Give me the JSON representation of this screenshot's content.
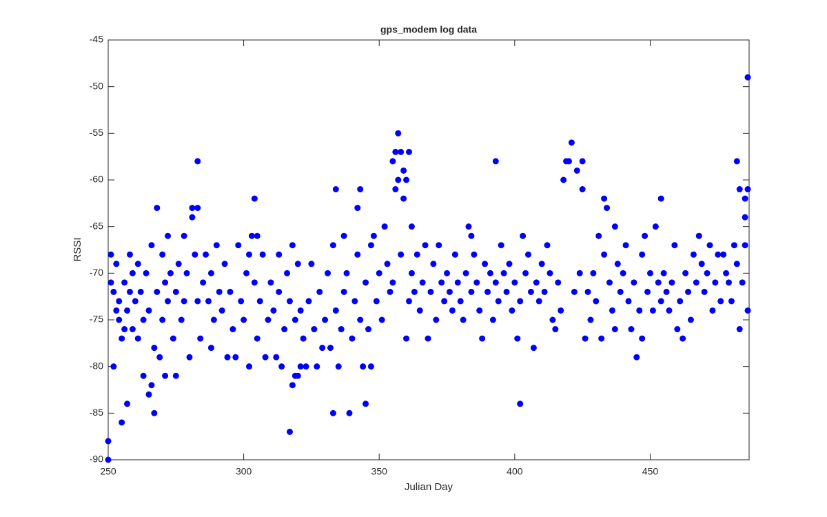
{
  "chart_data": {
    "type": "scatter",
    "title": "gps_modem log data",
    "x_label": "Julian Day",
    "y_label": "RSSI",
    "color": "#0000ff",
    "x": [
      250,
      250,
      251,
      251,
      252,
      252,
      253,
      253,
      254,
      254,
      255,
      255,
      256,
      256,
      257,
      257,
      258,
      258,
      259,
      259,
      260,
      261,
      261,
      262,
      263,
      263,
      264,
      265,
      265,
      266,
      266,
      267,
      267,
      268,
      268,
      269,
      270,
      270,
      271,
      271,
      272,
      272,
      273,
      274,
      275,
      275,
      276,
      277,
      278,
      278,
      279,
      280,
      281,
      281,
      282,
      283,
      283,
      283,
      284,
      285,
      286,
      287,
      288,
      288,
      289,
      290,
      291,
      292,
      293,
      294,
      295,
      296,
      297,
      298,
      299,
      300,
      301,
      302,
      302,
      303,
      304,
      304,
      305,
      305,
      306,
      307,
      308,
      309,
      310,
      311,
      312,
      313,
      313,
      314,
      315,
      316,
      317,
      317,
      318,
      318,
      319,
      319,
      320,
      320,
      321,
      321,
      322,
      323,
      324,
      325,
      326,
      327,
      328,
      329,
      330,
      331,
      332,
      333,
      333,
      334,
      334,
      335,
      336,
      337,
      337,
      338,
      339,
      340,
      341,
      342,
      342,
      343,
      343,
      344,
      345,
      345,
      346,
      347,
      347,
      348,
      349,
      350,
      351,
      352,
      353,
      354,
      355,
      355,
      356,
      356,
      357,
      357,
      358,
      358,
      359,
      359,
      360,
      360,
      361,
      361,
      362,
      362,
      363,
      364,
      365,
      366,
      367,
      368,
      369,
      370,
      371,
      372,
      373,
      374,
      375,
      376,
      377,
      378,
      379,
      380,
      381,
      382,
      383,
      384,
      384,
      385,
      386,
      387,
      388,
      389,
      390,
      391,
      392,
      393,
      393,
      394,
      395,
      396,
      397,
      398,
      399,
      400,
      401,
      402,
      402,
      403,
      404,
      405,
      406,
      407,
      408,
      409,
      410,
      411,
      412,
      413,
      414,
      415,
      416,
      417,
      418,
      419,
      420,
      421,
      422,
      423,
      424,
      425,
      425,
      426,
      427,
      428,
      429,
      430,
      431,
      432,
      433,
      433,
      434,
      435,
      436,
      437,
      437,
      438,
      439,
      440,
      441,
      442,
      443,
      444,
      445,
      446,
      447,
      447,
      448,
      449,
      450,
      451,
      452,
      453,
      454,
      454,
      455,
      456,
      457,
      458,
      459,
      460,
      461,
      462,
      463,
      464,
      465,
      466,
      467,
      468,
      469,
      470,
      471,
      472,
      473,
      474,
      475,
      476,
      477,
      478,
      479,
      480,
      481,
      482,
      482,
      483,
      483,
      484,
      485,
      485,
      485,
      486,
      486,
      486
    ],
    "values": [
      -88,
      -90,
      -68,
      -71,
      -80,
      -72,
      -74,
      -69,
      -75,
      -73,
      -86,
      -77,
      -71,
      -76,
      -84,
      -74,
      -68,
      -72,
      -76,
      -70,
      -73,
      -77,
      -69,
      -72,
      -81,
      -75,
      -70,
      -83,
      -74,
      -67,
      -82,
      -85,
      -78,
      -63,
      -72,
      -79,
      -68,
      -75,
      -81,
      -71,
      -66,
      -73,
      -70,
      -77,
      -81,
      -72,
      -69,
      -75,
      -66,
      -73,
      -70,
      -79,
      -64,
      -63,
      -68,
      -58,
      -63,
      -73,
      -77,
      -71,
      -68,
      -73,
      -78,
      -70,
      -75,
      -67,
      -72,
      -74,
      -69,
      -79,
      -72,
      -76,
      -79,
      -67,
      -73,
      -75,
      -70,
      -80,
      -68,
      -66,
      -62,
      -71,
      -66,
      -77,
      -73,
      -68,
      -79,
      -75,
      -71,
      -74,
      -79,
      -68,
      -72,
      -80,
      -76,
      -70,
      -87,
      -73,
      -82,
      -67,
      -81,
      -75,
      -81,
      -69,
      -80,
      -74,
      -77,
      -80,
      -73,
      -69,
      -76,
      -80,
      -72,
      -78,
      -75,
      -70,
      -78,
      -67,
      -85,
      -61,
      -74,
      -80,
      -76,
      -66,
      -72,
      -70,
      -85,
      -77,
      -73,
      -63,
      -68,
      -61,
      -75,
      -80,
      -84,
      -71,
      -76,
      -80,
      -67,
      -66,
      -73,
      -70,
      -75,
      -65,
      -69,
      -72,
      -58,
      -71,
      -61,
      -57,
      -60,
      -55,
      -57,
      -68,
      -59,
      -62,
      -60,
      -77,
      -57,
      -73,
      -65,
      -70,
      -72,
      -68,
      -74,
      -71,
      -67,
      -77,
      -72,
      -69,
      -75,
      -67,
      -71,
      -73,
      -70,
      -72,
      -74,
      -68,
      -71,
      -73,
      -75,
      -70,
      -65,
      -66,
      -72,
      -68,
      -71,
      -74,
      -77,
      -69,
      -72,
      -70,
      -75,
      -58,
      -71,
      -73,
      -67,
      -70,
      -72,
      -69,
      -74,
      -71,
      -77,
      -84,
      -73,
      -66,
      -70,
      -68,
      -72,
      -78,
      -71,
      -73,
      -69,
      -72,
      -67,
      -70,
      -75,
      -76,
      -71,
      -74,
      -60,
      -58,
      -58,
      -56,
      -72,
      -59,
      -70,
      -61,
      -58,
      -77,
      -72,
      -75,
      -70,
      -73,
      -66,
      -77,
      -62,
      -68,
      -63,
      -71,
      -74,
      -65,
      -76,
      -69,
      -72,
      -70,
      -67,
      -73,
      -76,
      -71,
      -79,
      -74,
      -77,
      -68,
      -66,
      -72,
      -70,
      -74,
      -65,
      -71,
      -62,
      -73,
      -70,
      -72,
      -74,
      -71,
      -67,
      -76,
      -73,
      -77,
      -70,
      -72,
      -75,
      -68,
      -71,
      -66,
      -69,
      -72,
      -70,
      -67,
      -74,
      -71,
      -68,
      -73,
      -68,
      -70,
      -71,
      -73,
      -67,
      -58,
      -69,
      -76,
      -61,
      -71,
      -64,
      -62,
      -67,
      -61,
      -74,
      -49
    ],
    "xlim": [
      250,
      486.5
    ],
    "ylim": [
      -90,
      -45
    ],
    "xticks": [
      250,
      300,
      350,
      400,
      450
    ],
    "yticks": [
      -90,
      -85,
      -80,
      -75,
      -70,
      -65,
      -60,
      -55,
      -50,
      -45
    ]
  }
}
